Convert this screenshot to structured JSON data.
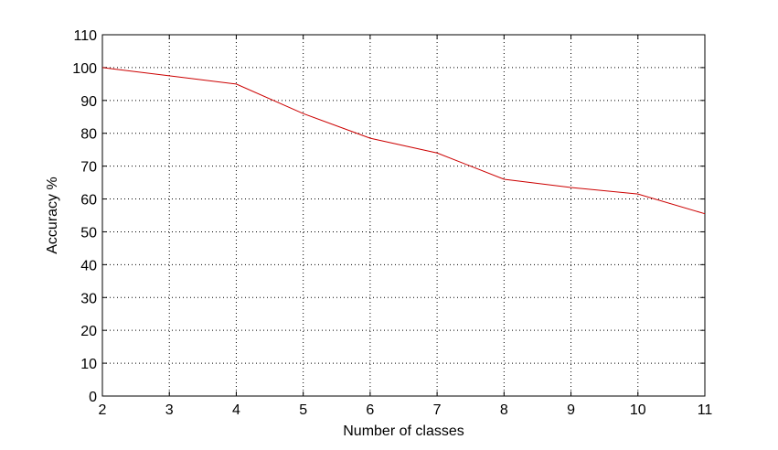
{
  "chart_data": {
    "type": "line",
    "title": "",
    "xlabel": "Number of classes",
    "ylabel": "Accuracy %",
    "x": [
      2,
      3,
      4,
      5,
      6,
      7,
      8,
      9,
      10,
      11
    ],
    "series": [
      {
        "values": [
          100,
          97.5,
          95,
          86,
          78.5,
          74,
          66,
          63.5,
          61.5,
          55.5
        ],
        "color": "#cc0000"
      }
    ],
    "xlim": [
      2,
      11
    ],
    "ylim": [
      0,
      110
    ],
    "xticks": [
      2,
      3,
      4,
      5,
      6,
      7,
      8,
      9,
      10,
      11
    ],
    "yticks": [
      0,
      10,
      20,
      30,
      40,
      50,
      60,
      70,
      80,
      90,
      100,
      110
    ],
    "grid": true,
    "grid_style": "dotted"
  }
}
